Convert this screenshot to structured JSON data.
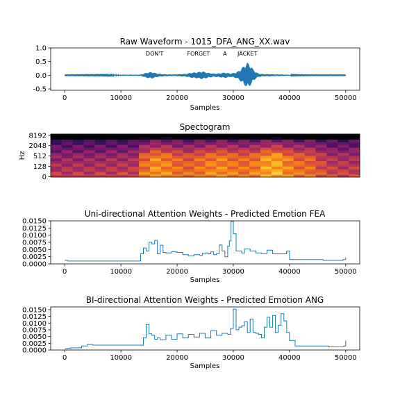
{
  "colors": {
    "series": "#1f77b4",
    "spectrogram_low": "#000004",
    "spectrogram_high": "#fcfdbf"
  },
  "chart_data": [
    {
      "id": "waveform",
      "type": "line",
      "title": "Raw Waveform - 1015_DFA_ANG_XX.wav",
      "xlabel": "Samples",
      "ylabel": "",
      "xlim": [
        -2500,
        52500
      ],
      "ylim": [
        -0.55,
        1.0
      ],
      "xticks": [
        0,
        10000,
        20000,
        30000,
        40000,
        50000
      ],
      "xticklabels": [
        "0",
        "10000",
        "20000",
        "30000",
        "40000",
        "50000"
      ],
      "yticks": [
        1.0,
        0.5,
        0.0,
        -0.5
      ],
      "yticklabels": [
        "1.0",
        "0.5",
        "0.0",
        "-0.5"
      ],
      "annotations": [
        {
          "text": "DON'T",
          "x": 16000,
          "y": 0.72
        },
        {
          "text": "FORGET",
          "x": 23800,
          "y": 0.72
        },
        {
          "text": "A",
          "x": 28500,
          "y": 0.72
        },
        {
          "text": "JACKET",
          "x": 32500,
          "y": 0.72
        }
      ],
      "envelope": {
        "x": [
          0,
          13500,
          14500,
          15500,
          16500,
          17500,
          18500,
          19500,
          20500,
          21500,
          22500,
          23500,
          24500,
          25500,
          26500,
          27500,
          28500,
          29500,
          30500,
          31000,
          31500,
          32000,
          32500,
          33000,
          33500,
          34000,
          34500,
          35500,
          36500,
          37500,
          38500,
          39500,
          40500,
          42000,
          44000,
          46000,
          48000,
          50000
        ],
        "amp": [
          0.01,
          0.02,
          0.09,
          0.12,
          0.06,
          0.04,
          0.03,
          0.03,
          0.04,
          0.05,
          0.09,
          0.11,
          0.14,
          0.09,
          0.06,
          0.07,
          0.1,
          0.06,
          0.1,
          0.16,
          0.26,
          0.36,
          0.46,
          0.38,
          0.22,
          0.12,
          0.06,
          0.04,
          0.04,
          0.03,
          0.03,
          0.02,
          0.015,
          0.012,
          0.01,
          0.01,
          0.01,
          0.01
        ]
      }
    },
    {
      "id": "spectrogram",
      "type": "heatmap",
      "title": "Spectogram",
      "xlabel": "",
      "ylabel": "Hz",
      "yticklabels": [
        "8192",
        "2048",
        "512",
        "128",
        "0"
      ],
      "time_frames": 28,
      "freq_bins": 16,
      "note": "energy per time frame (0-1), speech region strongest",
      "frame_energy": [
        0.15,
        0.16,
        0.17,
        0.16,
        0.18,
        0.2,
        0.22,
        0.24,
        0.62,
        0.78,
        0.72,
        0.6,
        0.55,
        0.62,
        0.7,
        0.74,
        0.66,
        0.62,
        0.68,
        0.86,
        0.9,
        0.72,
        0.6,
        0.58,
        0.4,
        0.28,
        0.26,
        0.25
      ]
    },
    {
      "id": "uni_attention",
      "type": "line",
      "title": "Uni-directional Attention Weights - Predicted Emotion FEA",
      "xlabel": "Samples",
      "ylabel": "",
      "xlim": [
        -2500,
        52500
      ],
      "ylim": [
        0,
        0.015
      ],
      "xticks": [
        0,
        10000,
        20000,
        30000,
        40000,
        50000
      ],
      "xticklabels": [
        "0",
        "10000",
        "20000",
        "30000",
        "40000",
        "50000"
      ],
      "yticks": [
        0.015,
        0.0125,
        0.01,
        0.0075,
        0.005,
        0.0025,
        0.0
      ],
      "yticklabels": [
        "0.0150",
        "0.0125",
        "0.0100",
        "0.0075",
        "0.0050",
        "0.0025",
        "0.0000"
      ],
      "x": [
        0,
        500,
        2000,
        4000,
        6000,
        8000,
        10000,
        12000,
        13200,
        13500,
        14000,
        14500,
        15000,
        15500,
        16000,
        16500,
        17000,
        17500,
        18000,
        19000,
        20000,
        21000,
        22000,
        23000,
        24000,
        24500,
        25000,
        25500,
        26000,
        26500,
        27000,
        27500,
        28000,
        28500,
        29000,
        29300,
        29600,
        30000,
        30500,
        31000,
        31500,
        32000,
        33000,
        34000,
        35000,
        36000,
        37000,
        38000,
        39000,
        39500,
        40000,
        42000,
        44000,
        46000,
        48000,
        49500,
        50000
      ],
      "values": [
        0.0012,
        0.001,
        0.001,
        0.001,
        0.001,
        0.001,
        0.001,
        0.001,
        0.001,
        0.0035,
        0.0055,
        0.0045,
        0.0075,
        0.007,
        0.0082,
        0.0035,
        0.0065,
        0.004,
        0.0038,
        0.0042,
        0.004,
        0.0032,
        0.0028,
        0.0032,
        0.003,
        0.0037,
        0.0038,
        0.0035,
        0.0042,
        0.0032,
        0.0036,
        0.0066,
        0.0045,
        0.0025,
        0.0062,
        0.008,
        0.0148,
        0.0105,
        0.0045,
        0.0045,
        0.0038,
        0.0052,
        0.0045,
        0.0038,
        0.0036,
        0.0048,
        0.0035,
        0.0035,
        0.0035,
        0.0045,
        0.0015,
        0.0015,
        0.0015,
        0.0012,
        0.0012,
        0.0015,
        0.0022
      ]
    },
    {
      "id": "bi_attention",
      "type": "line",
      "title": "BI-directional Attention Weights - Predicted Emotion ANG",
      "xlabel": "Samples",
      "ylabel": "",
      "xlim": [
        -2500,
        52500
      ],
      "ylim": [
        0,
        0.016
      ],
      "xticks": [
        0,
        10000,
        20000,
        30000,
        40000,
        50000
      ],
      "xticklabels": [
        "0",
        "10000",
        "20000",
        "30000",
        "40000",
        "50000"
      ],
      "yticks": [
        0.015,
        0.0125,
        0.01,
        0.0075,
        0.005,
        0.0025,
        0.0
      ],
      "yticklabels": [
        "0.0150",
        "0.0125",
        "0.0100",
        "0.0075",
        "0.0050",
        "0.0025",
        "0.0000"
      ],
      "x": [
        0,
        500,
        1000,
        2000,
        3000,
        4000,
        5000,
        6000,
        8000,
        10000,
        12000,
        13500,
        14000,
        14500,
        15000,
        15500,
        16000,
        16500,
        17000,
        18000,
        19000,
        20000,
        21000,
        22000,
        23000,
        24000,
        25000,
        26000,
        27000,
        28000,
        29000,
        29500,
        30000,
        30500,
        31000,
        31500,
        32000,
        32500,
        33000,
        33500,
        34000,
        34500,
        35000,
        35500,
        36000,
        36500,
        37000,
        37500,
        38000,
        38500,
        39000,
        39500,
        40000,
        41000,
        43000,
        45000,
        47000,
        49000,
        49700,
        50000
      ],
      "values": [
        0.0005,
        0.0006,
        0.0008,
        0.0008,
        0.0015,
        0.002,
        0.0018,
        0.0018,
        0.0018,
        0.0018,
        0.0018,
        0.0018,
        0.0045,
        0.0095,
        0.006,
        0.0055,
        0.004,
        0.0045,
        0.0038,
        0.0055,
        0.004,
        0.006,
        0.0045,
        0.0058,
        0.0048,
        0.0062,
        0.0045,
        0.0072,
        0.0055,
        0.0062,
        0.0058,
        0.008,
        0.0152,
        0.0075,
        0.0085,
        0.009,
        0.0105,
        0.0065,
        0.0115,
        0.0065,
        0.0062,
        0.0058,
        0.0045,
        0.0085,
        0.0122,
        0.0085,
        0.0128,
        0.0065,
        0.0092,
        0.0135,
        0.0108,
        0.0065,
        0.0035,
        0.0015,
        0.0015,
        0.0015,
        0.0012,
        0.0012,
        0.0015,
        0.0035
      ]
    }
  ]
}
